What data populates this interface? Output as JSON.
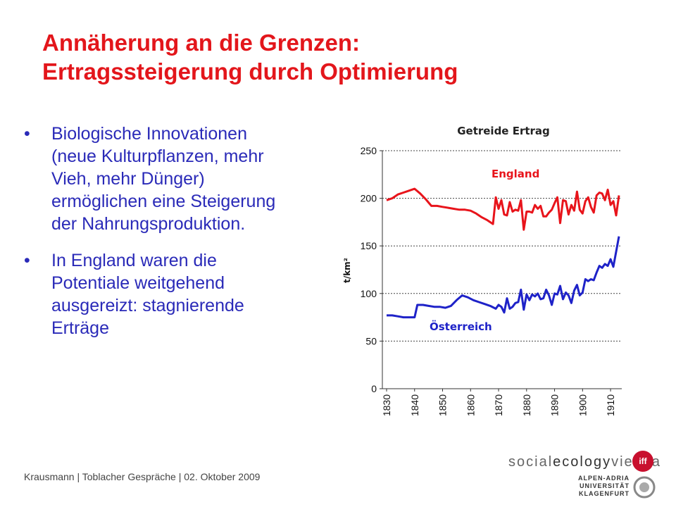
{
  "slide": {
    "title_line1": "Annäherung an die Grenzen:",
    "title_line2": "Ertragssteigerung durch Optimierung",
    "bullets": [
      {
        "lines": [
          "Biologische Innovationen",
          "(neue Kulturpflanzen, mehr",
          "Vieh, mehr Dünger)",
          "ermöglichen eine Steigerung",
          "der  Nahrungsproduktion."
        ]
      },
      {
        "lines": [
          "In England waren die",
          "Potentiale weitgehend",
          "ausgereizt: stagnierende",
          "Erträge"
        ]
      }
    ],
    "bullet_symbol": "•",
    "footer": "Krausmann | Toblacher Gespräche | 02. Oktober 2009",
    "logo_social": "social",
    "logo_ecology": "ecology",
    "logo_vienna": "vienna",
    "logo_iff": "iff",
    "uni_lines": [
      "ALPEN-ADRIA",
      "UNIVERSITÄT",
      "KLAGENFURT"
    ]
  },
  "colors": {
    "title": "#e3161b",
    "bullet_text": "#2a2ab8",
    "england": "#e8141b",
    "oesterreich": "#1e22c8",
    "iff": "#c8102e"
  },
  "chart_data": {
    "type": "line",
    "title": "Getreide Ertrag",
    "ylabel": "t/km²",
    "xlabel": "",
    "ylim": [
      0,
      250
    ],
    "xlim": [
      1830,
      1913
    ],
    "yticks": [
      0,
      50,
      100,
      150,
      200,
      250
    ],
    "xticks": [
      "1830",
      "1840",
      "1850",
      "1860",
      "1870",
      "1880",
      "1890",
      "1900",
      "1910"
    ],
    "grid": "horizontal dashed",
    "series": [
      {
        "name": "England",
        "color": "#e8141b",
        "points": [
          [
            1830,
            198
          ],
          [
            1832,
            200
          ],
          [
            1834,
            204
          ],
          [
            1836,
            206
          ],
          [
            1838,
            208
          ],
          [
            1840,
            210
          ],
          [
            1842,
            205
          ],
          [
            1844,
            199
          ],
          [
            1846,
            192
          ],
          [
            1848,
            192
          ],
          [
            1850,
            191
          ],
          [
            1852,
            190
          ],
          [
            1854,
            189
          ],
          [
            1856,
            188
          ],
          [
            1858,
            188
          ],
          [
            1860,
            187
          ],
          [
            1862,
            184
          ],
          [
            1864,
            180
          ],
          [
            1866,
            177
          ],
          [
            1868,
            173
          ],
          [
            1869,
            201
          ],
          [
            1870,
            189
          ],
          [
            1871,
            198
          ],
          [
            1872,
            183
          ],
          [
            1873,
            182
          ],
          [
            1874,
            196
          ],
          [
            1875,
            186
          ],
          [
            1876,
            188
          ],
          [
            1877,
            187
          ],
          [
            1878,
            198
          ],
          [
            1879,
            167
          ],
          [
            1880,
            186
          ],
          [
            1881,
            186
          ],
          [
            1882,
            185
          ],
          [
            1883,
            193
          ],
          [
            1884,
            189
          ],
          [
            1885,
            192
          ],
          [
            1886,
            181
          ],
          [
            1887,
            181
          ],
          [
            1888,
            185
          ],
          [
            1889,
            188
          ],
          [
            1890,
            195
          ],
          [
            1891,
            201
          ],
          [
            1892,
            174
          ],
          [
            1893,
            198
          ],
          [
            1894,
            197
          ],
          [
            1895,
            183
          ],
          [
            1896,
            193
          ],
          [
            1897,
            187
          ],
          [
            1898,
            207
          ],
          [
            1899,
            188
          ],
          [
            1900,
            184
          ],
          [
            1901,
            197
          ],
          [
            1902,
            201
          ],
          [
            1903,
            191
          ],
          [
            1904,
            185
          ],
          [
            1905,
            203
          ],
          [
            1906,
            206
          ],
          [
            1907,
            205
          ],
          [
            1908,
            198
          ],
          [
            1909,
            209
          ],
          [
            1910,
            193
          ],
          [
            1911,
            197
          ],
          [
            1912,
            182
          ],
          [
            1913,
            203
          ]
        ]
      },
      {
        "name": "Österreich",
        "color": "#1e22c8",
        "points": [
          [
            1830,
            77
          ],
          [
            1832,
            77
          ],
          [
            1834,
            76
          ],
          [
            1836,
            75
          ],
          [
            1838,
            75
          ],
          [
            1840,
            75
          ],
          [
            1841,
            88
          ],
          [
            1843,
            88
          ],
          [
            1845,
            87
          ],
          [
            1847,
            86
          ],
          [
            1849,
            86
          ],
          [
            1851,
            85
          ],
          [
            1853,
            87
          ],
          [
            1855,
            93
          ],
          [
            1857,
            98
          ],
          [
            1859,
            96
          ],
          [
            1861,
            93
          ],
          [
            1863,
            91
          ],
          [
            1865,
            89
          ],
          [
            1867,
            87
          ],
          [
            1869,
            84
          ],
          [
            1870,
            88
          ],
          [
            1871,
            86
          ],
          [
            1872,
            80
          ],
          [
            1873,
            95
          ],
          [
            1874,
            84
          ],
          [
            1875,
            86
          ],
          [
            1876,
            90
          ],
          [
            1877,
            91
          ],
          [
            1878,
            104
          ],
          [
            1879,
            83
          ],
          [
            1880,
            99
          ],
          [
            1881,
            93
          ],
          [
            1882,
            99
          ],
          [
            1883,
            97
          ],
          [
            1884,
            100
          ],
          [
            1885,
            94
          ],
          [
            1886,
            95
          ],
          [
            1887,
            104
          ],
          [
            1888,
            98
          ],
          [
            1889,
            88
          ],
          [
            1890,
            100
          ],
          [
            1891,
            99
          ],
          [
            1892,
            108
          ],
          [
            1893,
            94
          ],
          [
            1894,
            101
          ],
          [
            1895,
            98
          ],
          [
            1896,
            90
          ],
          [
            1897,
            103
          ],
          [
            1898,
            109
          ],
          [
            1899,
            98
          ],
          [
            1900,
            101
          ],
          [
            1901,
            115
          ],
          [
            1902,
            113
          ],
          [
            1903,
            115
          ],
          [
            1904,
            114
          ],
          [
            1905,
            122
          ],
          [
            1906,
            129
          ],
          [
            1907,
            127
          ],
          [
            1908,
            131
          ],
          [
            1909,
            129
          ],
          [
            1910,
            136
          ],
          [
            1911,
            128
          ],
          [
            1912,
            144
          ],
          [
            1913,
            160
          ]
        ]
      }
    ],
    "annotations": [
      {
        "text": "England",
        "color": "#e8141b"
      },
      {
        "text": "Österreich",
        "color": "#1e22c8"
      }
    ]
  }
}
